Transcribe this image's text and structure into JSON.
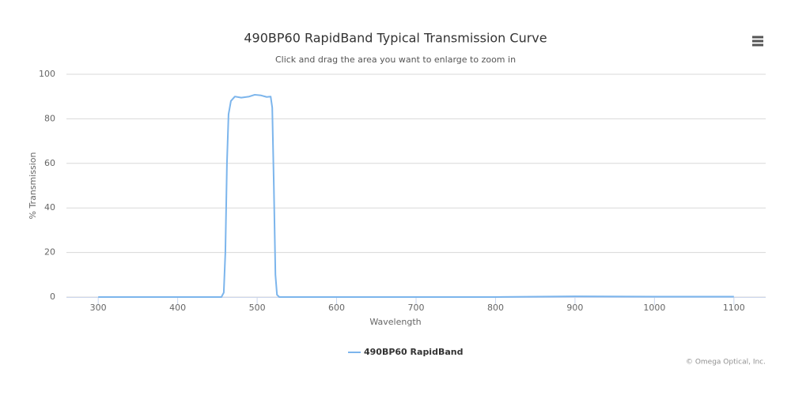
{
  "chart_data": {
    "type": "line",
    "title": "490BP60 RapidBand Typical Transmission Curve",
    "subtitle": "Click and drag the area you want to enlarge to zoom in",
    "x_label": "Wavelength",
    "y_label": "% Transmission",
    "credits": "© Omega Optical, Inc.",
    "x": [
      300,
      400,
      455,
      458,
      460,
      462,
      464,
      467,
      472,
      480,
      490,
      497,
      505,
      512,
      517,
      519,
      521,
      523,
      525,
      528,
      600,
      800,
      900,
      1000,
      1100
    ],
    "series": [
      {
        "name": "490BP60 RapidBand",
        "color": "#7cb5ec",
        "values": [
          0,
          0,
          0,
          2,
          20,
          60,
          82,
          88,
          90,
          89.5,
          90,
          90.8,
          90.5,
          89.8,
          90,
          85,
          50,
          10,
          1,
          0,
          0,
          0,
          0.3,
          0.2,
          0.2
        ]
      }
    ],
    "xlim": [
      260,
      1140
    ],
    "ylim": [
      0,
      100
    ],
    "xticks": [
      300,
      400,
      500,
      600,
      700,
      800,
      900,
      1000,
      1100
    ],
    "yticks": [
      0,
      20,
      40,
      60,
      80,
      100
    ],
    "grid": true
  }
}
